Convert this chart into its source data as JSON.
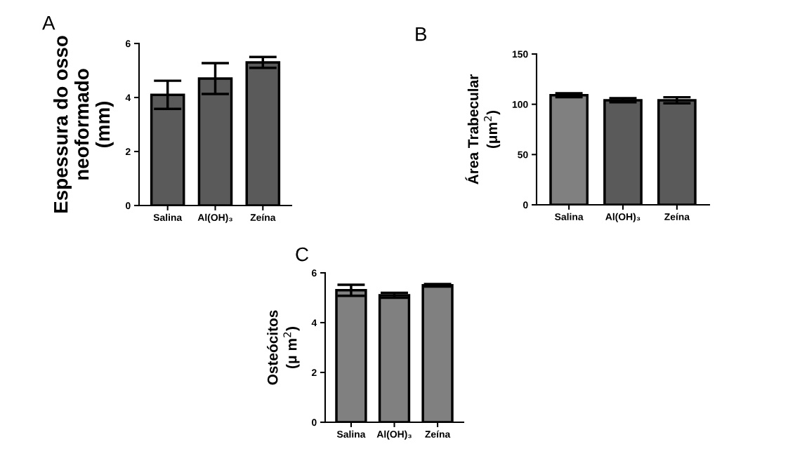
{
  "chart_data": [
    {
      "type": "bar",
      "title": "A",
      "ylabel": "Espessura do osso\nneoformado\n(mm)",
      "categories": [
        "Salina",
        "Al(OH)₃",
        "Zeína"
      ],
      "values": [
        4.1,
        4.7,
        5.3
      ],
      "errors": [
        0.52,
        0.57,
        0.2
      ],
      "colors": [
        "#5a5a5a",
        "#5a5a5a",
        "#5a5a5a"
      ],
      "ylim": [
        0,
        6
      ],
      "yticks": [
        0,
        2,
        4,
        6
      ]
    },
    {
      "type": "bar",
      "title": "B",
      "ylabel": "Área Trabecular\n(μm$^{2}$)",
      "categories": [
        "Salina",
        "Al(OH)₃",
        "Zeína"
      ],
      "values": [
        109,
        104,
        104
      ],
      "errors": [
        2,
        2,
        3
      ],
      "colors": [
        "#808080",
        "#5a5a5a",
        "#5a5a5a"
      ],
      "ylim": [
        0,
        150
      ],
      "yticks": [
        0,
        50,
        100,
        150
      ]
    },
    {
      "type": "bar",
      "title": "C",
      "ylabel": "Osteócitos\n(μ m$^{2}$)",
      "categories": [
        "Salina",
        "Al(OH)₃",
        "Zeína"
      ],
      "values": [
        5.3,
        5.1,
        5.5
      ],
      "errors": [
        0.22,
        0.1,
        0.05
      ],
      "colors": [
        "#808080",
        "#808080",
        "#808080"
      ],
      "ylim": [
        0,
        6
      ],
      "yticks": [
        0,
        2,
        4,
        6
      ]
    }
  ]
}
